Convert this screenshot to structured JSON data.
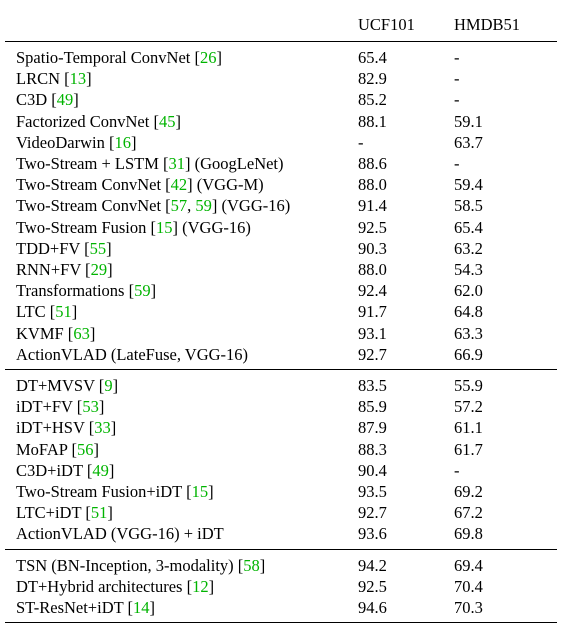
{
  "header": {
    "method": "",
    "ucf": "UCF101",
    "hmdb": "HMDB51"
  },
  "groups": [
    {
      "rows": [
        {
          "parts": [
            "Spatio-Temporal ConvNet [",
            {
              "c": "26"
            },
            "]"
          ],
          "ucf": "65.4",
          "hmdb": "-"
        },
        {
          "parts": [
            "LRCN [",
            {
              "c": "13"
            },
            "]"
          ],
          "ucf": "82.9",
          "hmdb": "-"
        },
        {
          "parts": [
            "C3D [",
            {
              "c": "49"
            },
            "]"
          ],
          "ucf": "85.2",
          "hmdb": "-"
        },
        {
          "parts": [
            "Factorized ConvNet [",
            {
              "c": "45"
            },
            "]"
          ],
          "ucf": "88.1",
          "hmdb": "59.1"
        },
        {
          "parts": [
            "VideoDarwin [",
            {
              "c": "16"
            },
            "]"
          ],
          "ucf": "-",
          "hmdb": "63.7"
        },
        {
          "parts": [
            "Two-Stream + LSTM [",
            {
              "c": "31"
            },
            "] (GoogLeNet)"
          ],
          "ucf": "88.6",
          "hmdb": "-"
        },
        {
          "parts": [
            "Two-Stream ConvNet [",
            {
              "c": "42"
            },
            "] (VGG-M)"
          ],
          "ucf": "88.0",
          "hmdb": "59.4"
        },
        {
          "parts": [
            "Two-Stream ConvNet [",
            {
              "c": "57"
            },
            ", ",
            {
              "c": "59"
            },
            "] (VGG-16)"
          ],
          "ucf": "91.4",
          "hmdb": "58.5"
        },
        {
          "parts": [
            "Two-Stream Fusion [",
            {
              "c": "15"
            },
            "] (VGG-16)"
          ],
          "ucf": "92.5",
          "hmdb": "65.4"
        },
        {
          "parts": [
            "TDD+FV [",
            {
              "c": "55"
            },
            "]"
          ],
          "ucf": "90.3",
          "hmdb": "63.2"
        },
        {
          "parts": [
            "RNN+FV [",
            {
              "c": "29"
            },
            "]"
          ],
          "ucf": "88.0",
          "hmdb": "54.3"
        },
        {
          "parts": [
            "Transformations [",
            {
              "c": "59"
            },
            "]"
          ],
          "ucf": "92.4",
          "hmdb": "62.0"
        },
        {
          "parts": [
            "LTC [",
            {
              "c": "51"
            },
            "]"
          ],
          "ucf": "91.7",
          "hmdb": "64.8"
        },
        {
          "parts": [
            "KVMF [",
            {
              "c": "63"
            },
            "]"
          ],
          "ucf": "93.1",
          "hmdb": "63.3",
          "ucf_bold": true
        },
        {
          "parts": [
            "ActionVLAD (LateFuse, VGG-16)"
          ],
          "ucf": "92.7",
          "hmdb": "66.9",
          "method_bold": true,
          "hmdb_bold": true
        }
      ]
    },
    {
      "rows": [
        {
          "parts": [
            "DT+MVSV [",
            {
              "c": "9"
            },
            "]"
          ],
          "ucf": "83.5",
          "hmdb": "55.9"
        },
        {
          "parts": [
            "iDT+FV [",
            {
              "c": "53"
            },
            "]"
          ],
          "ucf": "85.9",
          "hmdb": "57.2"
        },
        {
          "parts": [
            "iDT+HSV [",
            {
              "c": "33"
            },
            "]"
          ],
          "ucf": "87.9",
          "hmdb": "61.1"
        },
        {
          "parts": [
            "MoFAP [",
            {
              "c": "56"
            },
            "]"
          ],
          "ucf": "88.3",
          "hmdb": "61.7"
        },
        {
          "parts": [
            "C3D+iDT [",
            {
              "c": "49"
            },
            "]"
          ],
          "ucf": "90.4",
          "hmdb": "-"
        },
        {
          "parts": [
            "Two-Stream Fusion+iDT [",
            {
              "c": "15"
            },
            "]"
          ],
          "ucf": "93.5",
          "hmdb": "69.2"
        },
        {
          "parts": [
            "LTC+iDT [",
            {
              "c": "51"
            },
            "]"
          ],
          "ucf": "92.7",
          "hmdb": "67.2"
        },
        {
          "parts": [
            "ActionVLAD (VGG-16) + iDT"
          ],
          "ucf": "93.6",
          "hmdb": "69.8",
          "method_bold": true,
          "ucf_bold": true,
          "hmdb_bold": true
        }
      ]
    },
    {
      "rows": [
        {
          "parts": [
            "TSN (BN-Inception, 3-modality) [",
            {
              "c": "58"
            },
            "]"
          ],
          "ucf": "94.2",
          "hmdb": "69.4"
        },
        {
          "parts": [
            "DT+Hybrid architectures [",
            {
              "c": "12"
            },
            "]"
          ],
          "ucf": "92.5",
          "hmdb": "70.4"
        },
        {
          "parts": [
            "ST-ResNet+iDT [",
            {
              "c": "14"
            },
            "]"
          ],
          "ucf": "94.6",
          "hmdb": "70.3"
        }
      ]
    }
  ],
  "colors": {
    "citation": "#00b400",
    "text": "#000000"
  }
}
